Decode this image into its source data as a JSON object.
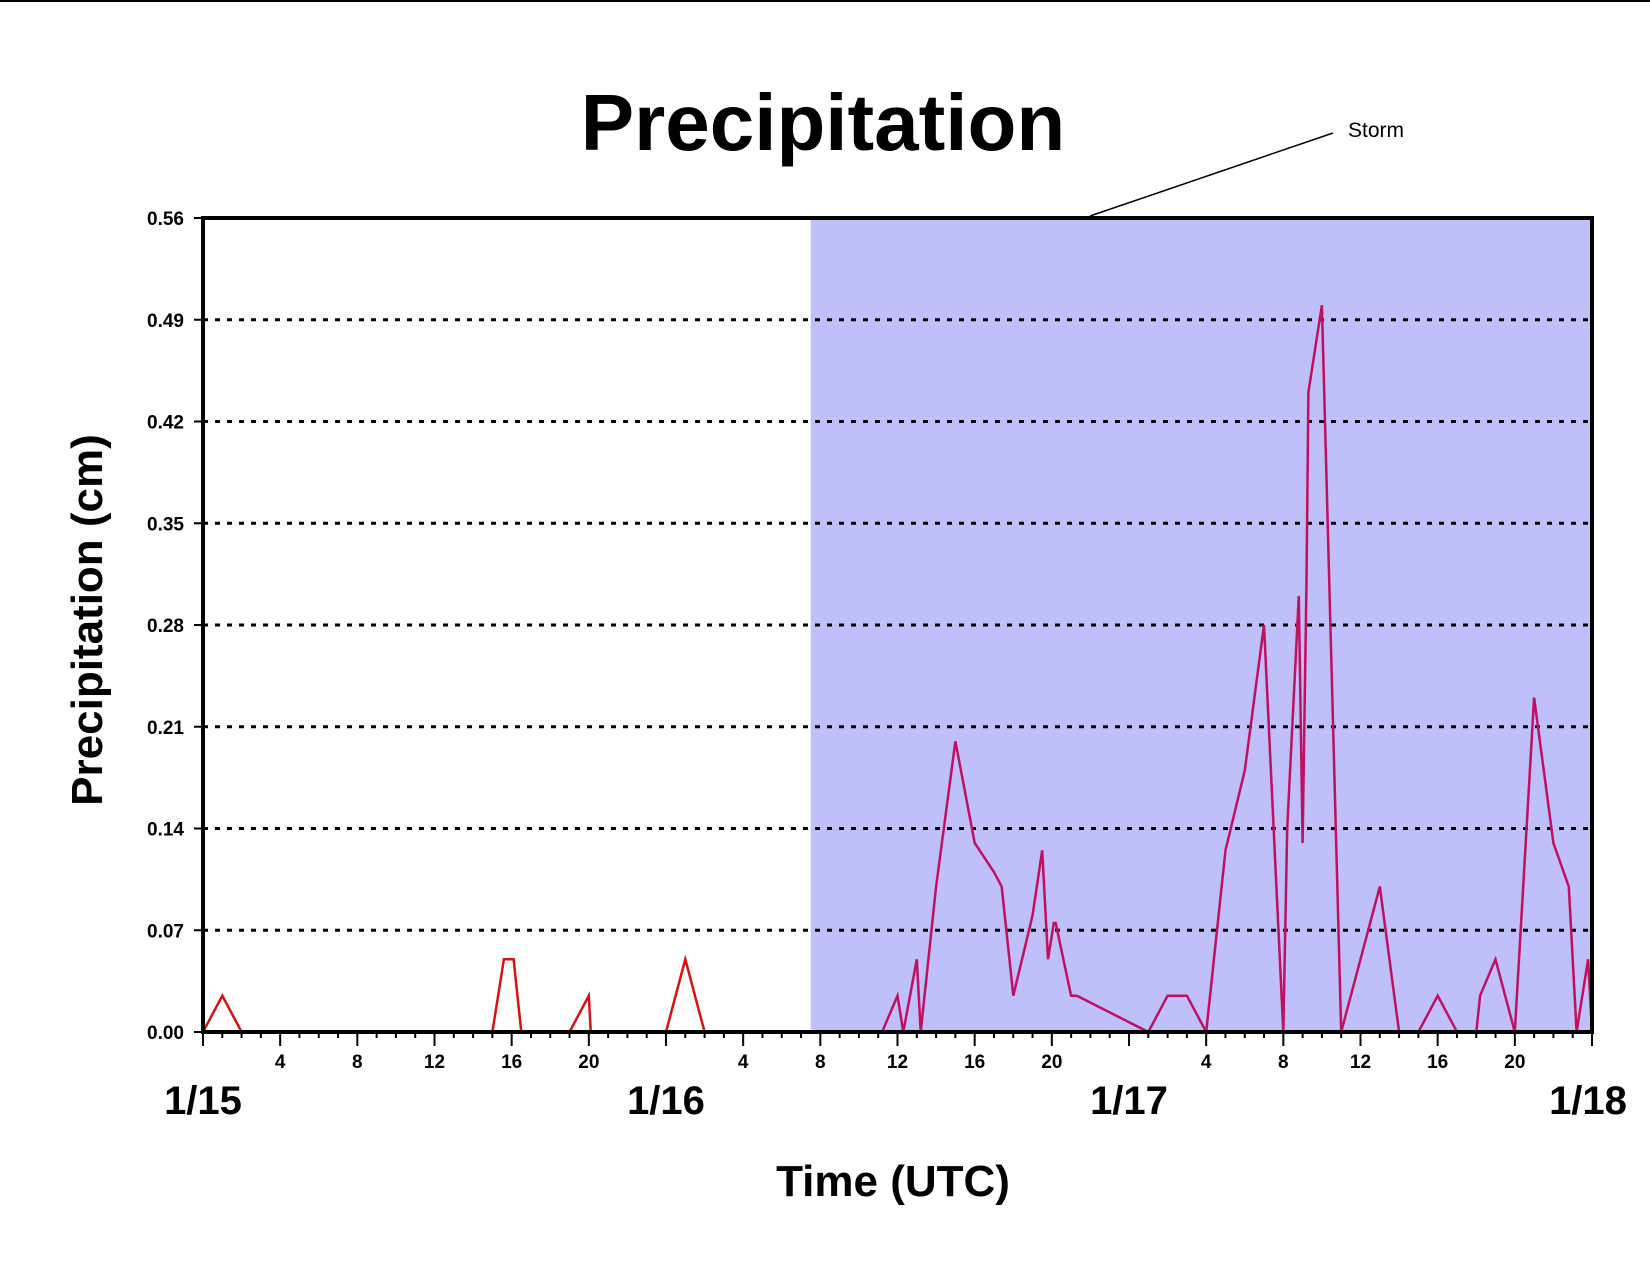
{
  "chart_data": {
    "type": "line",
    "title": "Precipitation",
    "xlabel": "Time (UTC)",
    "ylabel": "Precipitation (cm)",
    "ylim": [
      0,
      0.56
    ],
    "yticks": [
      "0.00",
      "0.07",
      "0.14",
      "0.21",
      "0.28",
      "0.35",
      "0.42",
      "0.49",
      "0.56"
    ],
    "xlim_hours": [
      0,
      72
    ],
    "day_labels": [
      {
        "hour": 0,
        "label": "1/15"
      },
      {
        "hour": 24,
        "label": "1/16"
      },
      {
        "hour": 48,
        "label": "1/17"
      },
      {
        "hour": 72,
        "label": "1/18"
      }
    ],
    "hour_labels": [
      {
        "hour": 4,
        "label": "4"
      },
      {
        "hour": 8,
        "label": "8"
      },
      {
        "hour": 12,
        "label": "12"
      },
      {
        "hour": 16,
        "label": "16"
      },
      {
        "hour": 20,
        "label": "20"
      },
      {
        "hour": 28,
        "label": "4"
      },
      {
        "hour": 32,
        "label": "8"
      },
      {
        "hour": 36,
        "label": "12"
      },
      {
        "hour": 40,
        "label": "16"
      },
      {
        "hour": 44,
        "label": "20"
      },
      {
        "hour": 52,
        "label": "4"
      },
      {
        "hour": 56,
        "label": "8"
      },
      {
        "hour": 60,
        "label": "12"
      },
      {
        "hour": 64,
        "label": "16"
      },
      {
        "hour": 68,
        "label": "20"
      }
    ],
    "grid": "horizontal dotted",
    "shaded_region": {
      "start_hour": 31.5,
      "end_hour": 72,
      "color": "#bfbff9",
      "annotation": "Storm"
    },
    "series": [
      {
        "color": "#d81111",
        "x": [
          0,
          1,
          2,
          15,
          15.6,
          16.1,
          16.5,
          19,
          20,
          20.1,
          24,
          25,
          26,
          31.5
        ],
        "y": [
          0,
          0.025,
          0,
          0,
          0.05,
          0.05,
          0,
          0,
          0.025,
          0,
          0,
          0.05,
          0,
          0
        ]
      },
      {
        "color": "#c01060",
        "x": [
          31.5,
          35.2,
          36,
          36.3,
          37,
          37.2,
          38,
          39,
          40,
          41,
          41.4,
          42,
          43,
          43.5,
          43.8,
          44.1,
          44.2,
          45,
          45.3,
          49,
          50,
          51,
          52,
          53,
          54,
          55,
          56,
          56.2,
          56.8,
          57,
          57.2,
          57.3,
          58,
          59,
          61,
          62,
          63,
          64,
          65,
          66,
          66.2,
          67,
          68,
          69,
          70,
          70.8,
          71.2,
          71.8,
          72
        ],
        "y": [
          0,
          0,
          0.025,
          0,
          0.05,
          0,
          0.1,
          0.2,
          0.13,
          0.11,
          0.1,
          0.025,
          0.08,
          0.125,
          0.05,
          0.075,
          0.075,
          0.025,
          0.025,
          0,
          0.025,
          0.025,
          0,
          0.125,
          0.18,
          0.28,
          0,
          0.14,
          0.3,
          0.13,
          0.31,
          0.44,
          0.5,
          0,
          0.1,
          0,
          0,
          0.025,
          0,
          0,
          0.025,
          0.05,
          0,
          0.23,
          0.13,
          0.1,
          0,
          0.05,
          0
        ]
      }
    ]
  }
}
